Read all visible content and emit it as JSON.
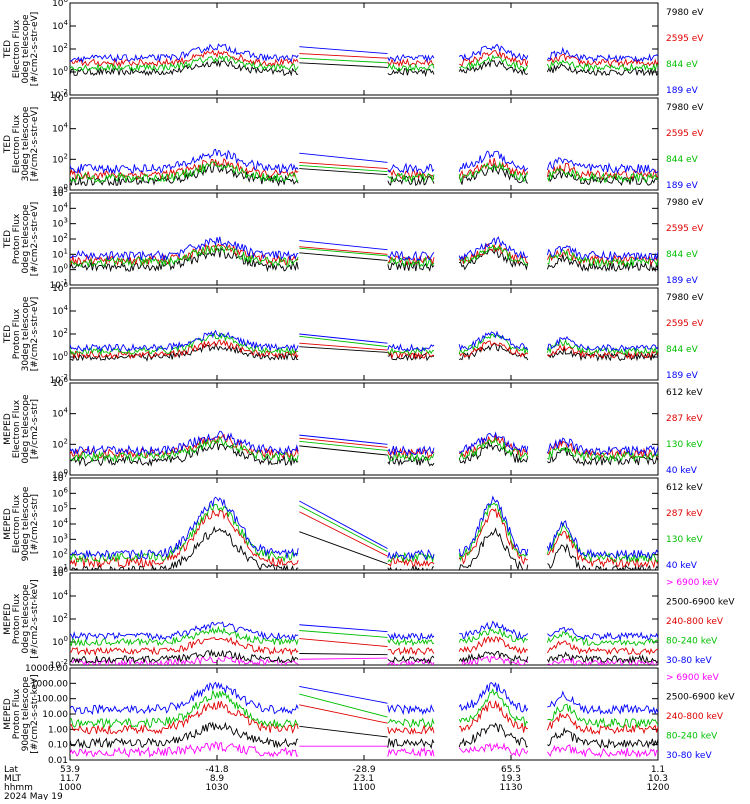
{
  "chart_data": [
    {
      "type": "line",
      "ylabel_lines": [
        "TED",
        "Electron Flux",
        "0deg telescope",
        "[#/cm2-s-str-eV]"
      ],
      "yscale": "log",
      "ytick_labels": [
        "10^-2",
        "10^0",
        "10^2",
        "10^4",
        "10^6"
      ],
      "ylim": [
        0.01,
        1000000
      ],
      "legend": [
        {
          "label": "7980 eV",
          "color": "#000000"
        },
        {
          "label": "2595 eV",
          "color": "#e00000"
        },
        {
          "label": "844 eV",
          "color": "#00c000"
        },
        {
          "label": "189 eV",
          "color": "#0000ff"
        }
      ],
      "series_levels": {
        "#0000ff": [
          1.2,
          2.2
        ],
        "#e00000": [
          0.8,
          1.6
        ],
        "#00c000": [
          0.4,
          1.2
        ],
        "#000000": [
          0.0,
          0.8
        ]
      }
    },
    {
      "type": "line",
      "ylabel_lines": [
        "TED",
        "Electron Flux",
        "30deg telescope",
        "[#/cm2-s-str-eV]"
      ],
      "yscale": "log",
      "ytick_labels": [
        "10^0",
        "10^2",
        "10^4",
        "10^6"
      ],
      "ylim": [
        1,
        1000000
      ],
      "legend": [
        {
          "label": "7980 eV",
          "color": "#000000"
        },
        {
          "label": "2595 eV",
          "color": "#e00000"
        },
        {
          "label": "844 eV",
          "color": "#00c000"
        },
        {
          "label": "189 eV",
          "color": "#0000ff"
        }
      ],
      "series_levels": {
        "#0000ff": [
          1.4,
          2.4
        ],
        "#e00000": [
          1.0,
          1.8
        ],
        "#00c000": [
          0.8,
          1.6
        ],
        "#000000": [
          0.6,
          1.4
        ]
      }
    },
    {
      "type": "line",
      "ylabel_lines": [
        "TED",
        "Proton Flux",
        "0deg telescope",
        "[#/cm2-s-str-eV]"
      ],
      "yscale": "log",
      "ytick_labels": [
        "10^-1",
        "10^0",
        "10^1",
        "10^2",
        "10^3",
        "10^4",
        "10^5"
      ],
      "ylim": [
        0.1,
        100000
      ],
      "legend": [
        {
          "label": "7980 eV",
          "color": "#000000"
        },
        {
          "label": "2595 eV",
          "color": "#e00000"
        },
        {
          "label": "844 eV",
          "color": "#00c000"
        },
        {
          "label": "189 eV",
          "color": "#0000ff"
        }
      ],
      "series_levels": {
        "#0000ff": [
          0.9,
          1.9
        ],
        "#e00000": [
          0.6,
          1.5
        ],
        "#00c000": [
          0.5,
          1.4
        ],
        "#000000": [
          0.2,
          1.1
        ]
      }
    },
    {
      "type": "line",
      "ylabel_lines": [
        "TED",
        "Proton Flux",
        "30deg telescope",
        "[#/cm2-s-str-eV]"
      ],
      "yscale": "log",
      "ytick_labels": [
        "10^-2",
        "10^0",
        "10^2",
        "10^4",
        "10^6"
      ],
      "ylim": [
        0.01,
        1000000
      ],
      "legend": [
        {
          "label": "7980 eV",
          "color": "#000000"
        },
        {
          "label": "2595 eV",
          "color": "#e00000"
        },
        {
          "label": "844 eV",
          "color": "#00c000"
        },
        {
          "label": "189 eV",
          "color": "#0000ff"
        }
      ],
      "series_levels": {
        "#0000ff": [
          0.8,
          2.0
        ],
        "#e00000": [
          0.2,
          1.2
        ],
        "#00c000": [
          0.5,
          1.8
        ],
        "#000000": [
          0.0,
          0.9
        ]
      }
    },
    {
      "type": "line",
      "ylabel_lines": [
        "MEPED",
        "Electron Flux",
        "0deg telescope",
        "[#/cm2-s-str]"
      ],
      "yscale": "log",
      "ytick_labels": [
        "10^0",
        "10^2",
        "10^4",
        "10^6"
      ],
      "ylim": [
        1,
        1000000
      ],
      "legend": [
        {
          "label": "612 keV",
          "color": "#000000"
        },
        {
          "label": "287 keV",
          "color": "#e00000"
        },
        {
          "label": "130 keV",
          "color": "#00c000"
        },
        {
          "label": "40 keV",
          "color": "#0000ff"
        }
      ],
      "series_levels": {
        "#0000ff": [
          1.6,
          2.6
        ],
        "#e00000": [
          1.4,
          2.4
        ],
        "#00c000": [
          1.2,
          2.2
        ],
        "#000000": [
          0.9,
          1.9
        ]
      }
    },
    {
      "type": "line",
      "ylabel_lines": [
        "MEPED",
        "Electron Flux",
        "90deg telescope",
        "[#/cm2-s-str]"
      ],
      "yscale": "log",
      "ytick_labels": [
        "10^1",
        "10^2",
        "10^3",
        "10^4",
        "10^5",
        "10^6",
        "10^7"
      ],
      "ylim": [
        10,
        10000000
      ],
      "legend": [
        {
          "label": "612 keV",
          "color": "#000000"
        },
        {
          "label": "287 keV",
          "color": "#e00000"
        },
        {
          "label": "130 keV",
          "color": "#00c000"
        },
        {
          "label": "40 keV",
          "color": "#0000ff"
        }
      ],
      "series_levels": {
        "#0000ff": [
          2.0,
          5.5
        ],
        "#e00000": [
          1.5,
          4.8
        ],
        "#00c000": [
          1.8,
          5.2
        ],
        "#000000": [
          1.0,
          3.5
        ]
      }
    },
    {
      "type": "line",
      "ylabel_lines": [
        "MEPED",
        "Proton Flux",
        "0deg telescope",
        "[#/cm2-s-str-keV]"
      ],
      "yscale": "log",
      "ytick_labels": [
        "10^-2",
        "10^0",
        "10^2",
        "10^4",
        "10^6"
      ],
      "ylim": [
        0.01,
        1000000
      ],
      "legend": [
        {
          "label": "> 6900 keV",
          "color": "#ff00ff"
        },
        {
          "label": "2500-6900 keV",
          "color": "#000000"
        },
        {
          "label": "240-800 keV",
          "color": "#e00000"
        },
        {
          "label": "80-240 keV",
          "color": "#00c000"
        },
        {
          "label": "30-80 keV",
          "color": "#0000ff"
        }
      ],
      "series_levels": {
        "#0000ff": [
          0.5,
          1.5
        ],
        "#e00000": [
          -0.8,
          0.3
        ],
        "#00c000": [
          0.0,
          1.0
        ],
        "#000000": [
          -1.5,
          -1.0
        ],
        "#ff00ff": [
          -1.8,
          -1.5
        ]
      }
    },
    {
      "type": "line",
      "ylabel_lines": [
        "MEPED",
        "Proton Flux",
        "90deg telescope",
        "[#/cm2-s-str-keV]"
      ],
      "yscale": "log",
      "ytick_labels": [
        "0.01",
        "0.10",
        "1.00",
        "10.00",
        "100.00",
        "1000.00",
        "10000.00"
      ],
      "ylim": [
        0.01,
        10000
      ],
      "legend": [
        {
          "label": "> 6900 keV",
          "color": "#ff00ff"
        },
        {
          "label": "2500-6900 keV",
          "color": "#000000"
        },
        {
          "label": "240-800 keV",
          "color": "#e00000"
        },
        {
          "label": "80-240 keV",
          "color": "#00c000"
        },
        {
          "label": "30-80 keV",
          "color": "#0000ff"
        }
      ],
      "series_levels": {
        "#0000ff": [
          1.3,
          2.8
        ],
        "#e00000": [
          0.0,
          1.6
        ],
        "#00c000": [
          0.4,
          2.3
        ],
        "#000000": [
          -0.9,
          0.2
        ],
        "#ff00ff": [
          -1.5,
          -1.1
        ]
      }
    }
  ],
  "x_axis": {
    "row_labels": [
      "Lat",
      "MLT",
      "hhmm"
    ],
    "date": "2024 May 19",
    "ticks": [
      {
        "lat": "53.9",
        "mlt": "11.7",
        "hhmm": "1000"
      },
      {
        "lat": "-41.8",
        "mlt": "8.9",
        "hhmm": "1030"
      },
      {
        "lat": "-28.9",
        "mlt": "23.1",
        "hhmm": "1100"
      },
      {
        "lat": "65.5",
        "mlt": "19.3",
        "hhmm": "1130"
      },
      {
        "lat": "1.1",
        "mlt": "10.3",
        "hhmm": "1200"
      }
    ]
  },
  "coverage_segments": [
    [
      0.0,
      0.39
    ],
    [
      0.54,
      0.62
    ],
    [
      0.66,
      0.78
    ],
    [
      0.81,
      1.0
    ]
  ],
  "gap_segments": [
    [
      0.39,
      0.54
    ]
  ]
}
